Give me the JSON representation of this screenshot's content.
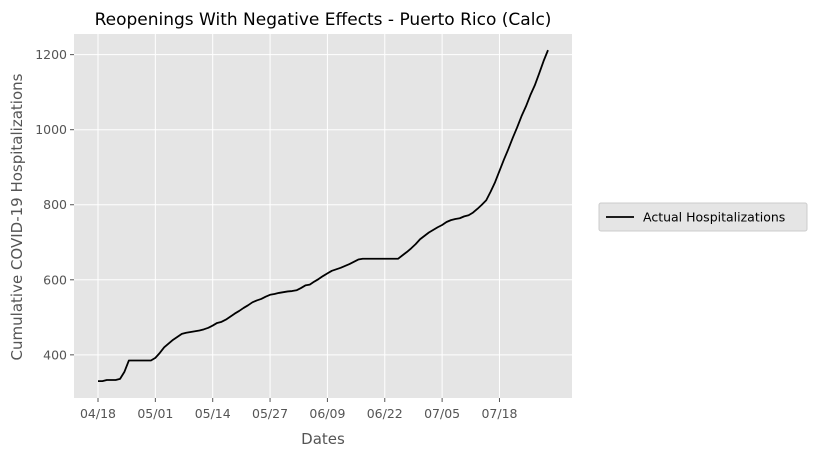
{
  "chart_data": {
    "type": "line",
    "title": "Reopenings With Negative Effects - Puerto Rico (Calc)",
    "xlabel": "Dates",
    "ylabel": "Cumulative COVID-19 Hospitalizations",
    "x_ticks": [
      "04/18",
      "05/01",
      "05/14",
      "05/27",
      "06/09",
      "06/22",
      "07/05",
      "07/18"
    ],
    "y_ticks": [
      400,
      600,
      800,
      1000,
      1200
    ],
    "ylim": [
      285,
      1255
    ],
    "grid": true,
    "legend_placement": "center-right outside",
    "colors": {
      "background": "#e5e5e5",
      "grid": "#ffffff",
      "line": "#000000"
    },
    "series": [
      {
        "name": "Actual Hospitalizations",
        "points": [
          {
            "x": "04/18",
            "y": 330
          },
          {
            "x": "04/19",
            "y": 330
          },
          {
            "x": "04/20",
            "y": 333
          },
          {
            "x": "04/21",
            "y": 333
          },
          {
            "x": "04/22",
            "y": 333
          },
          {
            "x": "04/23",
            "y": 336
          },
          {
            "x": "04/24",
            "y": 355
          },
          {
            "x": "04/25",
            "y": 385
          },
          {
            "x": "04/26",
            "y": 385
          },
          {
            "x": "04/27",
            "y": 385
          },
          {
            "x": "04/28",
            "y": 385
          },
          {
            "x": "04/29",
            "y": 385
          },
          {
            "x": "04/30",
            "y": 385
          },
          {
            "x": "05/01",
            "y": 392
          },
          {
            "x": "05/02",
            "y": 405
          },
          {
            "x": "05/03",
            "y": 420
          },
          {
            "x": "05/04",
            "y": 430
          },
          {
            "x": "05/05",
            "y": 440
          },
          {
            "x": "05/06",
            "y": 448
          },
          {
            "x": "05/07",
            "y": 456
          },
          {
            "x": "05/08",
            "y": 459
          },
          {
            "x": "05/09",
            "y": 461
          },
          {
            "x": "05/10",
            "y": 463
          },
          {
            "x": "05/11",
            "y": 465
          },
          {
            "x": "05/12",
            "y": 468
          },
          {
            "x": "05/13",
            "y": 472
          },
          {
            "x": "05/14",
            "y": 478
          },
          {
            "x": "05/15",
            "y": 485
          },
          {
            "x": "05/16",
            "y": 488
          },
          {
            "x": "05/17",
            "y": 494
          },
          {
            "x": "05/18",
            "y": 502
          },
          {
            "x": "05/19",
            "y": 510
          },
          {
            "x": "05/20",
            "y": 517
          },
          {
            "x": "05/21",
            "y": 525
          },
          {
            "x": "05/22",
            "y": 532
          },
          {
            "x": "05/23",
            "y": 540
          },
          {
            "x": "05/24",
            "y": 545
          },
          {
            "x": "05/25",
            "y": 549
          },
          {
            "x": "05/26",
            "y": 555
          },
          {
            "x": "05/27",
            "y": 560
          },
          {
            "x": "05/28",
            "y": 562
          },
          {
            "x": "05/29",
            "y": 565
          },
          {
            "x": "05/30",
            "y": 567
          },
          {
            "x": "05/31",
            "y": 569
          },
          {
            "x": "06/01",
            "y": 570
          },
          {
            "x": "06/02",
            "y": 572
          },
          {
            "x": "06/03",
            "y": 578
          },
          {
            "x": "06/04",
            "y": 585
          },
          {
            "x": "06/05",
            "y": 587
          },
          {
            "x": "06/06",
            "y": 595
          },
          {
            "x": "06/07",
            "y": 602
          },
          {
            "x": "06/08",
            "y": 610
          },
          {
            "x": "06/09",
            "y": 617
          },
          {
            "x": "06/10",
            "y": 624
          },
          {
            "x": "06/11",
            "y": 628
          },
          {
            "x": "06/12",
            "y": 632
          },
          {
            "x": "06/13",
            "y": 637
          },
          {
            "x": "06/14",
            "y": 642
          },
          {
            "x": "06/15",
            "y": 648
          },
          {
            "x": "06/16",
            "y": 654
          },
          {
            "x": "06/17",
            "y": 656
          },
          {
            "x": "06/18",
            "y": 656
          },
          {
            "x": "06/19",
            "y": 656
          },
          {
            "x": "06/20",
            "y": 656
          },
          {
            "x": "06/21",
            "y": 656
          },
          {
            "x": "06/22",
            "y": 656
          },
          {
            "x": "06/23",
            "y": 656
          },
          {
            "x": "06/24",
            "y": 656
          },
          {
            "x": "06/25",
            "y": 656
          },
          {
            "x": "06/26",
            "y": 665
          },
          {
            "x": "06/27",
            "y": 674
          },
          {
            "x": "06/28",
            "y": 684
          },
          {
            "x": "06/29",
            "y": 695
          },
          {
            "x": "06/30",
            "y": 708
          },
          {
            "x": "07/01",
            "y": 717
          },
          {
            "x": "07/02",
            "y": 726
          },
          {
            "x": "07/03",
            "y": 733
          },
          {
            "x": "07/04",
            "y": 740
          },
          {
            "x": "07/05",
            "y": 746
          },
          {
            "x": "07/06",
            "y": 754
          },
          {
            "x": "07/07",
            "y": 759
          },
          {
            "x": "07/08",
            "y": 762
          },
          {
            "x": "07/09",
            "y": 764
          },
          {
            "x": "07/10",
            "y": 769
          },
          {
            "x": "07/11",
            "y": 772
          },
          {
            "x": "07/12",
            "y": 779
          },
          {
            "x": "07/13",
            "y": 789
          },
          {
            "x": "07/14",
            "y": 800
          },
          {
            "x": "07/15",
            "y": 812
          },
          {
            "x": "07/16",
            "y": 835
          },
          {
            "x": "07/17",
            "y": 860
          },
          {
            "x": "07/18",
            "y": 890
          },
          {
            "x": "07/19",
            "y": 920
          },
          {
            "x": "07/20",
            "y": 948
          },
          {
            "x": "07/21",
            "y": 978
          },
          {
            "x": "07/22",
            "y": 1006
          },
          {
            "x": "07/23",
            "y": 1036
          },
          {
            "x": "07/24",
            "y": 1062
          },
          {
            "x": "07/25",
            "y": 1092
          },
          {
            "x": "07/26",
            "y": 1118
          },
          {
            "x": "07/27",
            "y": 1150
          },
          {
            "x": "07/28",
            "y": 1183
          },
          {
            "x": "07/29",
            "y": 1212
          }
        ]
      }
    ]
  }
}
